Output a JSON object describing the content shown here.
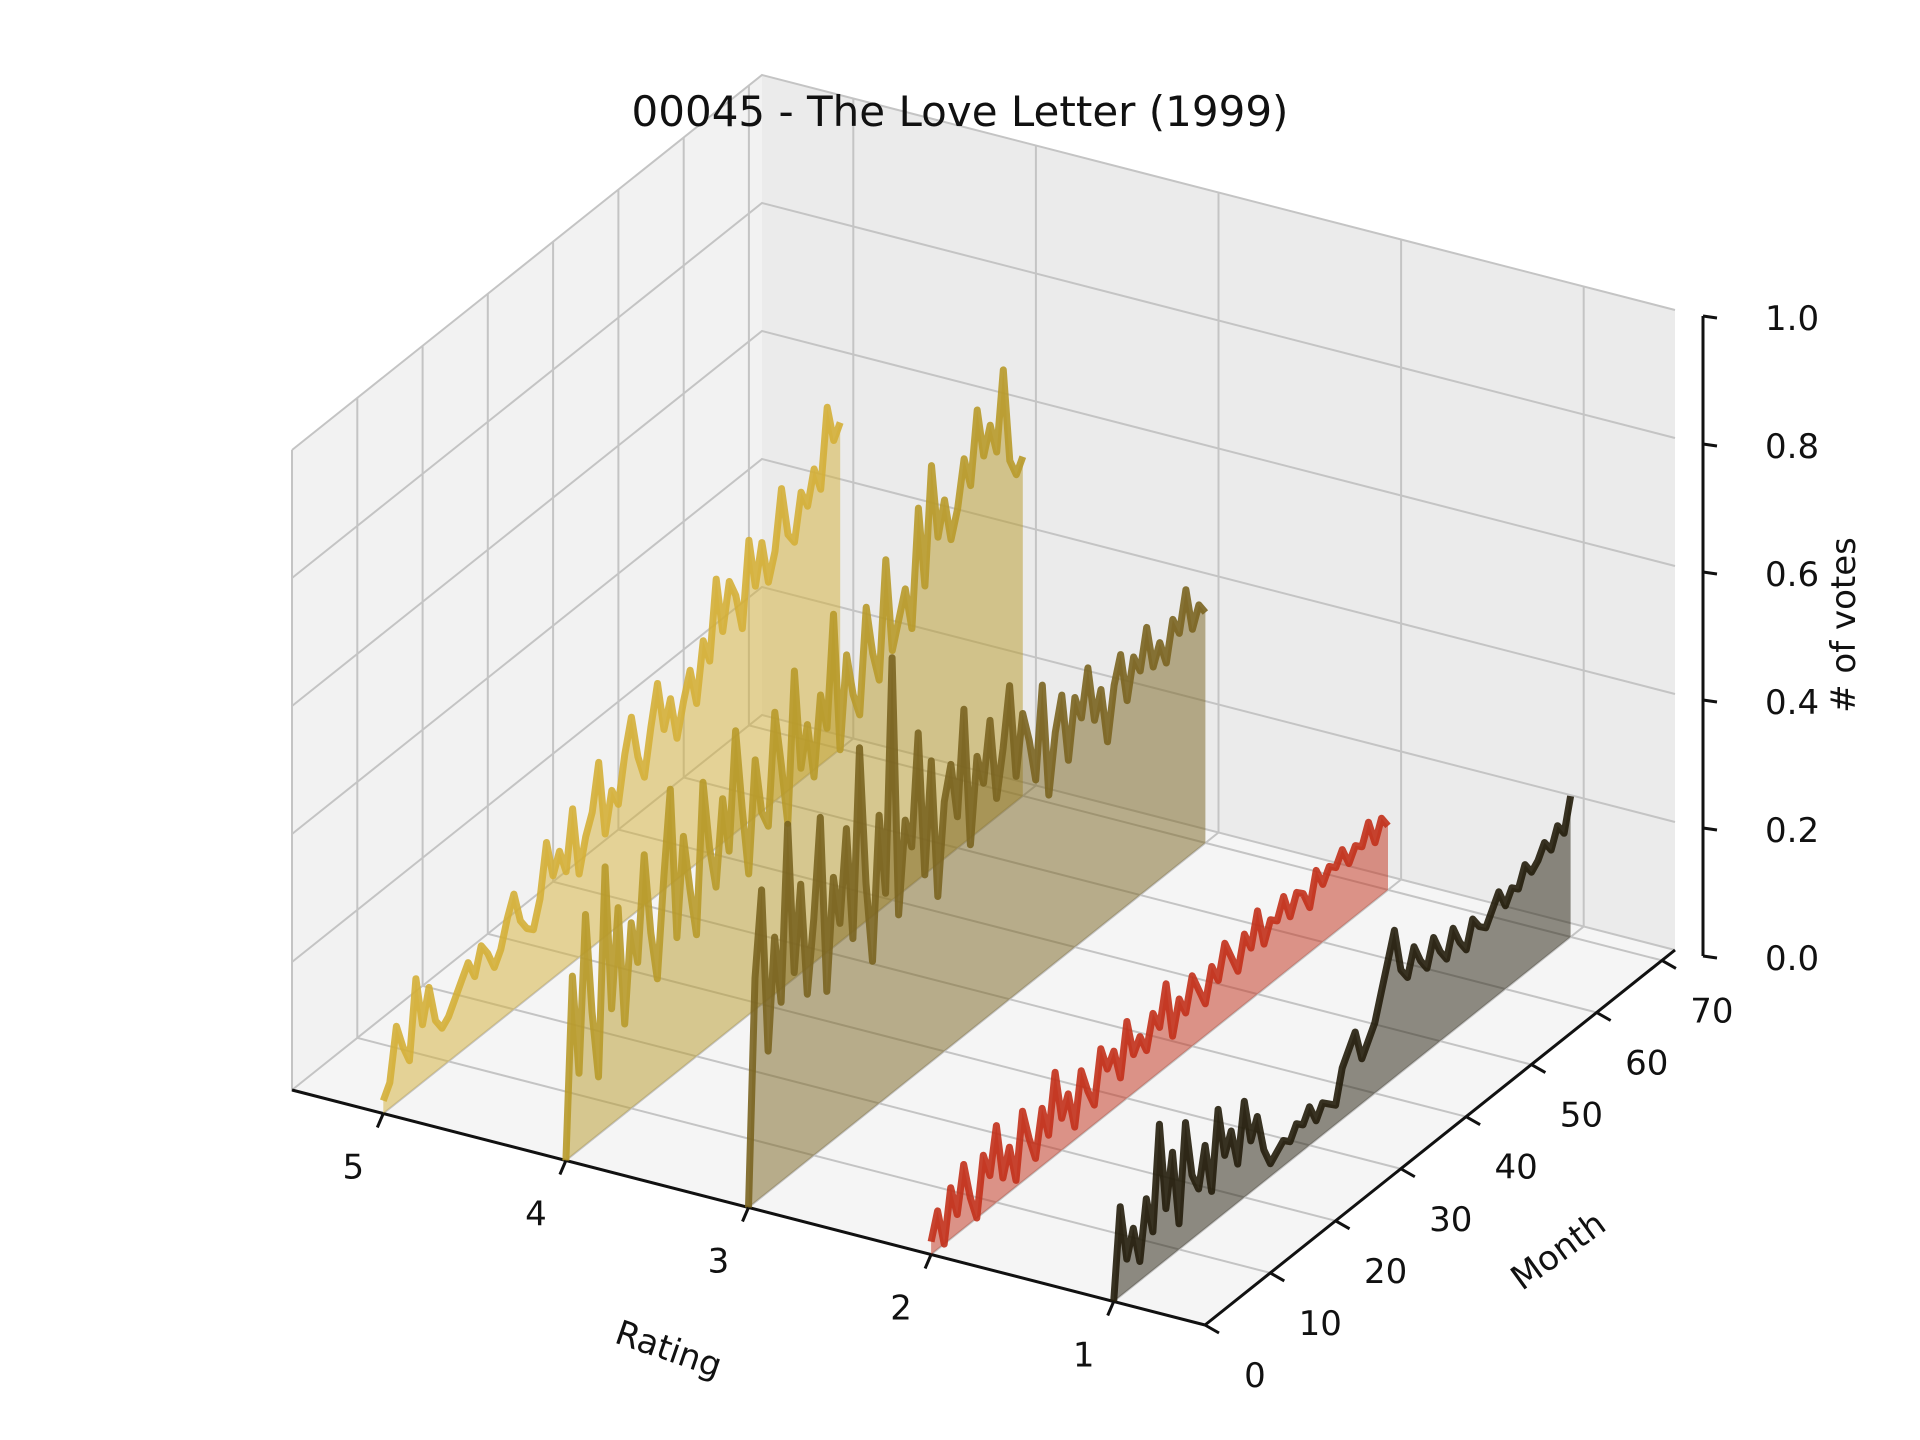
{
  "chart_data": {
    "type": "line",
    "title": "00045 - The Love Letter (1999)",
    "xlabel": "Rating",
    "ylabel": "Month",
    "zlabel": "# of votes",
    "rating_ticks": [
      "5",
      "4",
      "3",
      "2",
      "1"
    ],
    "month_ticks": [
      "0",
      "10",
      "20",
      "30",
      "40",
      "50",
      "60",
      "70"
    ],
    "votes_ticks": [
      "0.0",
      "0.2",
      "0.4",
      "0.6",
      "0.8",
      "1.0"
    ],
    "xlim": [
      0.5,
      5.5
    ],
    "ylim": [
      0,
      72
    ],
    "zlim": [
      0,
      1
    ],
    "grid": true,
    "months": [
      0,
      1,
      2,
      3,
      4,
      5,
      6,
      7,
      8,
      9,
      10,
      11,
      12,
      13,
      14,
      15,
      16,
      17,
      18,
      19,
      20,
      21,
      22,
      23,
      24,
      25,
      26,
      27,
      28,
      29,
      30,
      31,
      32,
      33,
      34,
      35,
      36,
      37,
      38,
      39,
      40,
      41,
      42,
      43,
      44,
      45,
      46,
      47,
      48,
      49,
      50,
      51,
      52,
      53,
      54,
      55,
      56,
      57,
      58,
      59,
      60,
      61,
      62,
      63,
      64,
      65,
      66,
      67,
      68,
      69,
      70
    ],
    "series": [
      {
        "name": "5",
        "rating": 5,
        "color": "#d4af37",
        "values": [
          0.02,
          0.04,
          0.12,
          0.08,
          0.05,
          0.17,
          0.09,
          0.14,
          0.08,
          0.06,
          0.07,
          0.09,
          0.11,
          0.13,
          0.1,
          0.14,
          0.12,
          0.09,
          0.11,
          0.15,
          0.18,
          0.13,
          0.11,
          0.1,
          0.14,
          0.22,
          0.16,
          0.19,
          0.15,
          0.24,
          0.13,
          0.18,
          0.21,
          0.28,
          0.16,
          0.22,
          0.19,
          0.26,
          0.31,
          0.24,
          0.2,
          0.27,
          0.33,
          0.25,
          0.29,
          0.22,
          0.27,
          0.31,
          0.25,
          0.34,
          0.3,
          0.42,
          0.33,
          0.4,
          0.37,
          0.31,
          0.44,
          0.36,
          0.42,
          0.35,
          0.39,
          0.48,
          0.4,
          0.38,
          0.45,
          0.42,
          0.47,
          0.43,
          0.55,
          0.49,
          0.51
        ]
      },
      {
        "name": "4",
        "rating": 4,
        "color": "#b89a2a",
        "values": [
          0.0,
          0.28,
          0.12,
          0.36,
          0.2,
          0.09,
          0.41,
          0.18,
          0.33,
          0.14,
          0.29,
          0.22,
          0.38,
          0.25,
          0.17,
          0.32,
          0.45,
          0.21,
          0.36,
          0.27,
          0.19,
          0.42,
          0.31,
          0.24,
          0.37,
          0.28,
          0.46,
          0.33,
          0.22,
          0.39,
          0.3,
          0.27,
          0.44,
          0.35,
          0.25,
          0.48,
          0.32,
          0.38,
          0.29,
          0.41,
          0.35,
          0.52,
          0.3,
          0.44,
          0.37,
          0.33,
          0.49,
          0.41,
          0.36,
          0.54,
          0.39,
          0.43,
          0.47,
          0.4,
          0.58,
          0.45,
          0.63,
          0.51,
          0.56,
          0.49,
          0.53,
          0.6,
          0.55,
          0.66,
          0.58,
          0.62,
          0.57,
          0.69,
          0.54,
          0.51,
          0.53
        ]
      },
      {
        "name": "3",
        "rating": 3,
        "color": "#7a6420",
        "values": [
          0.0,
          0.35,
          0.48,
          0.22,
          0.39,
          0.28,
          0.55,
          0.31,
          0.44,
          0.26,
          0.37,
          0.52,
          0.24,
          0.41,
          0.33,
          0.47,
          0.29,
          0.58,
          0.36,
          0.23,
          0.45,
          0.32,
          0.68,
          0.27,
          0.41,
          0.36,
          0.53,
          0.3,
          0.47,
          0.25,
          0.39,
          0.44,
          0.35,
          0.51,
          0.29,
          0.42,
          0.37,
          0.46,
          0.33,
          0.4,
          0.49,
          0.34,
          0.43,
          0.38,
          0.31,
          0.45,
          0.27,
          0.36,
          0.41,
          0.3,
          0.39,
          0.35,
          0.42,
          0.33,
          0.37,
          0.28,
          0.36,
          0.4,
          0.32,
          0.38,
          0.35,
          0.41,
          0.34,
          0.37,
          0.33,
          0.39,
          0.36,
          0.42,
          0.35,
          0.38,
          0.36
        ]
      },
      {
        "name": "2",
        "rating": 2,
        "color": "#c2301a",
        "values": [
          0.02,
          0.06,
          0.0,
          0.08,
          0.03,
          0.1,
          0.04,
          0.0,
          0.09,
          0.05,
          0.12,
          0.03,
          0.07,
          0.01,
          0.11,
          0.06,
          0.02,
          0.09,
          0.04,
          0.13,
          0.05,
          0.08,
          0.02,
          0.1,
          0.06,
          0.03,
          0.11,
          0.07,
          0.09,
          0.04,
          0.12,
          0.06,
          0.08,
          0.05,
          0.1,
          0.07,
          0.13,
          0.04,
          0.09,
          0.06,
          0.11,
          0.08,
          0.05,
          0.1,
          0.07,
          0.12,
          0.09,
          0.06,
          0.11,
          0.08,
          0.13,
          0.07,
          0.1,
          0.09,
          0.12,
          0.08,
          0.11,
          0.1,
          0.07,
          0.12,
          0.09,
          0.11,
          0.1,
          0.12,
          0.09,
          0.11,
          0.1,
          0.13,
          0.09,
          0.12,
          0.1
        ]
      },
      {
        "name": "1",
        "rating": 1,
        "color": "#231d0b",
        "values": [
          0.0,
          0.14,
          0.05,
          0.09,
          0.03,
          0.12,
          0.06,
          0.22,
          0.08,
          0.16,
          0.04,
          0.19,
          0.1,
          0.07,
          0.13,
          0.05,
          0.17,
          0.09,
          0.12,
          0.06,
          0.15,
          0.08,
          0.11,
          0.05,
          0.02,
          0.03,
          0.04,
          0.03,
          0.05,
          0.04,
          0.06,
          0.03,
          0.05,
          0.04,
          0.03,
          0.08,
          0.1,
          0.12,
          0.07,
          0.09,
          0.11,
          0.15,
          0.19,
          0.23,
          0.16,
          0.14,
          0.18,
          0.15,
          0.13,
          0.17,
          0.14,
          0.12,
          0.16,
          0.13,
          0.11,
          0.15,
          0.13,
          0.12,
          0.14,
          0.16,
          0.13,
          0.15,
          0.14,
          0.17,
          0.15,
          0.16,
          0.18,
          0.16,
          0.19,
          0.17,
          0.22
        ]
      }
    ]
  }
}
